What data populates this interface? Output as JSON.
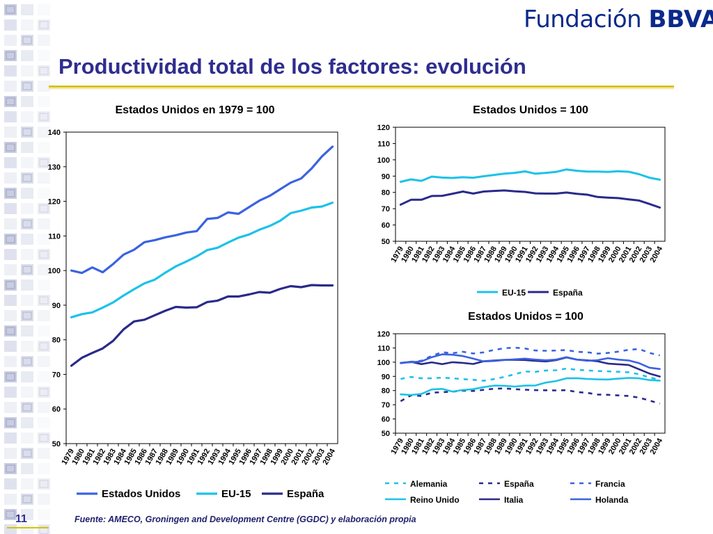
{
  "logo": {
    "text_light": "Fundación ",
    "text_bold": "BBVA"
  },
  "slide": {
    "title": "Productividad total de los factores: evolución",
    "page_number": "11",
    "source": "Fuente:  AMECO, Groningen and Development Centre (GGDC) y elaboración propia"
  },
  "colors": {
    "estados_unidos": "#3a63e0",
    "eu15": "#1cc2e8",
    "espana": "#2a2a8a",
    "alemania": "#1cc2e8",
    "francia": "#3a63e0",
    "reino_unido": "#1cc2e8",
    "italia": "#2a2a8a",
    "holanda": "#3a63e0",
    "title": "#2f2d8f",
    "rule": "#d6c200"
  },
  "chart_data": [
    {
      "type": "line",
      "title": "Estados Unidos en 1979 = 100",
      "x": [
        "1979",
        "1980",
        "1981",
        "1982",
        "1983",
        "1984",
        "1985",
        "1986",
        "1987",
        "1988",
        "1989",
        "1990",
        "1991",
        "1992",
        "1993",
        "1994",
        "1995",
        "1996",
        "1997",
        "1998",
        "1999",
        "2000",
        "2001",
        "2002",
        "2003",
        "2004"
      ],
      "ylim": [
        50,
        140
      ],
      "yticks": [
        50,
        60,
        70,
        80,
        90,
        100,
        110,
        120,
        130,
        140
      ],
      "legend": "bottom",
      "series": [
        {
          "name": "Estados Unidos",
          "color_key": "estados_unidos",
          "dash": false,
          "values": [
            100.0,
            99.3,
            100.9,
            99.5,
            101.9,
            104.6,
            106.0,
            108.2,
            108.8,
            109.6,
            110.2,
            111.0,
            111.4,
            114.9,
            115.2,
            116.8,
            116.4,
            118.3,
            120.2,
            121.6,
            123.5,
            125.4,
            126.6,
            129.5,
            133.0,
            135.8
          ]
        },
        {
          "name": "EU-15",
          "color_key": "eu15",
          "dash": false,
          "values": [
            86.5,
            87.4,
            87.9,
            89.3,
            90.8,
            92.8,
            94.6,
            96.3,
            97.4,
            99.4,
            101.2,
            102.6,
            104.1,
            105.9,
            106.6,
            108.1,
            109.5,
            110.4,
            111.8,
            112.9,
            114.4,
            116.6,
            117.3,
            118.2,
            118.5,
            119.6
          ]
        },
        {
          "name": "España",
          "color_key": "espana",
          "dash": false,
          "values": [
            72.5,
            74.8,
            76.2,
            77.5,
            79.7,
            83.0,
            85.3,
            85.8,
            87.1,
            88.4,
            89.5,
            89.3,
            89.4,
            90.9,
            91.3,
            92.5,
            92.5,
            93.1,
            93.8,
            93.6,
            94.7,
            95.5,
            95.2,
            95.8,
            95.7,
            95.7
          ]
        }
      ]
    },
    {
      "type": "line",
      "title": "Estados Unidos = 100",
      "x": [
        "1979",
        "1980",
        "1981",
        "1982",
        "1983",
        "1984",
        "1985",
        "1986",
        "1987",
        "1988",
        "1989",
        "1990",
        "1991",
        "1992",
        "1993",
        "1994",
        "1995",
        "1996",
        "1997",
        "1998",
        "1999",
        "2000",
        "2001",
        "2002",
        "2003",
        "2004"
      ],
      "ylim": [
        50,
        120
      ],
      "yticks": [
        50,
        60,
        70,
        80,
        90,
        100,
        110,
        120
      ],
      "legend": "bottom",
      "series": [
        {
          "name": "EU-15",
          "color_key": "eu15",
          "dash": false,
          "values": [
            86.5,
            88.0,
            87.1,
            89.7,
            89.1,
            88.9,
            89.3,
            89.0,
            89.9,
            90.7,
            91.5,
            92.0,
            92.9,
            91.5,
            92.0,
            92.6,
            94.1,
            93.3,
            92.8,
            92.8,
            92.6,
            93.0,
            92.7,
            91.2,
            89.0,
            87.8
          ]
        },
        {
          "name": "España",
          "color_key": "espana",
          "dash": false,
          "values": [
            72.5,
            75.5,
            75.5,
            77.8,
            77.9,
            79.2,
            80.5,
            79.3,
            80.5,
            80.9,
            81.2,
            80.7,
            80.3,
            79.4,
            79.3,
            79.3,
            79.9,
            79.1,
            78.6,
            77.2,
            76.8,
            76.5,
            75.7,
            75.0,
            72.9,
            70.7
          ]
        }
      ]
    },
    {
      "type": "line",
      "title": "Estados Unidos = 100",
      "x": [
        "1979",
        "1980",
        "1981",
        "1982",
        "1983",
        "1984",
        "1985",
        "1986",
        "1987",
        "1988",
        "1989",
        "1990",
        "1991",
        "1992",
        "1993",
        "1994",
        "1995",
        "1996",
        "1997",
        "1998",
        "1999",
        "2000",
        "2001",
        "2002",
        "2003",
        "2004"
      ],
      "ylim": [
        50,
        120
      ],
      "yticks": [
        50,
        60,
        70,
        80,
        90,
        100,
        110,
        120
      ],
      "legend": "bottom",
      "series": [
        {
          "name": "Alemania",
          "color_key": "alemania",
          "dash": true,
          "values": [
            88.2,
            89.6,
            88.6,
            88.6,
            89.1,
            88.6,
            88.1,
            87.6,
            86.9,
            88.1,
            89.6,
            91.5,
            93.4,
            93.2,
            94.1,
            94.3,
            95.5,
            94.6,
            94.2,
            93.7,
            93.5,
            93.2,
            92.9,
            91.5,
            89.3,
            87.5
          ]
        },
        {
          "name": "España",
          "color_key": "espana",
          "dash": true,
          "values": [
            72.5,
            76.7,
            76.2,
            78.5,
            78.9,
            79.2,
            80.0,
            79.7,
            80.5,
            81.3,
            81.5,
            81.0,
            80.6,
            80.3,
            80.2,
            80.1,
            80.3,
            79.0,
            78.4,
            77.2,
            77.0,
            76.6,
            76.2,
            75.0,
            73.0,
            70.8
          ]
        },
        {
          "name": "Francia",
          "color_key": "francia",
          "dash": true,
          "values": [
            99.2,
            100.2,
            101.0,
            104.5,
            107.0,
            106.3,
            107.3,
            106.1,
            106.9,
            108.6,
            109.8,
            110.2,
            109.6,
            108.2,
            108.0,
            108.2,
            108.5,
            107.3,
            107.0,
            106.0,
            106.5,
            107.4,
            108.7,
            109.3,
            106.5,
            104.8
          ]
        },
        {
          "name": "Reino Unido",
          "color_key": "reino_unido",
          "dash": false,
          "values": [
            77.3,
            76.9,
            77.6,
            80.8,
            81.2,
            79.3,
            80.4,
            81.0,
            82.4,
            83.5,
            83.4,
            82.8,
            83.5,
            83.6,
            85.6,
            86.7,
            88.6,
            88.7,
            88.2,
            87.9,
            87.8,
            88.4,
            88.9,
            88.6,
            87.4,
            87.0
          ]
        },
        {
          "name": "Italia",
          "color_key": "italia",
          "dash": false,
          "values": [
            99.5,
            100.2,
            98.6,
            99.9,
            98.6,
            100.0,
            99.5,
            98.7,
            100.6,
            101.1,
            101.6,
            101.7,
            101.5,
            100.9,
            100.5,
            101.4,
            103.3,
            101.8,
            101.3,
            100.6,
            99.0,
            98.5,
            98.0,
            95.0,
            92.0,
            89.9
          ]
        },
        {
          "name": "Holanda",
          "color_key": "holanda",
          "dash": false,
          "values": [
            99.5,
            100.0,
            100.5,
            103.5,
            105.5,
            105.2,
            104.3,
            102.5,
            100.5,
            100.8,
            101.5,
            102.0,
            102.5,
            101.8,
            101.3,
            101.8,
            103.5,
            101.8,
            101.0,
            101.4,
            102.8,
            101.8,
            101.2,
            99.3,
            96.1,
            95.2
          ]
        }
      ]
    }
  ]
}
